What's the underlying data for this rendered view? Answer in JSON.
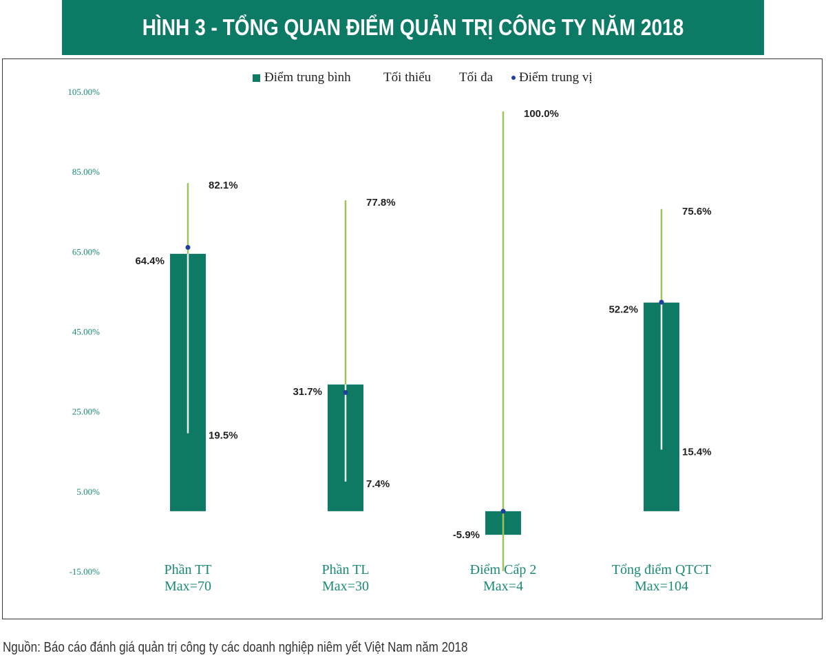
{
  "title": "HÌNH 3 - TỔNG QUAN ĐIỂM QUẢN TRỊ CÔNG TY NĂM 2018",
  "source": "Nguồn: Báo cáo đánh giá quản trị công ty các doanh nghiệp niêm yết Việt Nam năm 2018",
  "colors": {
    "bar": "#0e7a63",
    "max_line": "#9cc45a",
    "min_line": "#e6efe9",
    "median": "#1f3f9a",
    "axis_text": "#1a8a73",
    "title_bg": "#0d7a65"
  },
  "chart_data": {
    "type": "bar",
    "legend": [
      "Điểm trung bình",
      "Tối thiểu",
      "Tối đa",
      "Điểm trung vị"
    ],
    "legend_placement": "top",
    "categories": [
      [
        "Phần TT",
        "Max=70"
      ],
      [
        "Phần TL",
        "Max=30"
      ],
      [
        "Điểm Cấp 2",
        "Max=4"
      ],
      [
        "Tổng điểm QTCT",
        "Max=104"
      ]
    ],
    "mean": [
      64.4,
      31.7,
      -5.9,
      52.2
    ],
    "mean_labels": [
      "64.4%",
      "31.7%",
      "-5.9%",
      "52.2%"
    ],
    "min": [
      19.5,
      7.4,
      -15,
      15.4
    ],
    "min_labels": [
      "19.5%",
      "7.4%",
      "",
      "15.4%"
    ],
    "max": [
      82.1,
      77.8,
      100.0,
      75.6
    ],
    "max_labels": [
      "82.1%",
      "77.8%",
      "100.0%",
      "75.6%"
    ],
    "median": [
      66,
      29.7,
      0,
      52.3
    ],
    "ylim": [
      -15,
      105
    ],
    "yticks": [
      -15,
      5,
      25,
      45,
      65,
      85,
      105
    ],
    "ytick_labels": [
      "-15.00%",
      "5.00%",
      "25.00%",
      "45.00%",
      "65.00%",
      "85.00%",
      "105.00%"
    ],
    "grid": false
  }
}
